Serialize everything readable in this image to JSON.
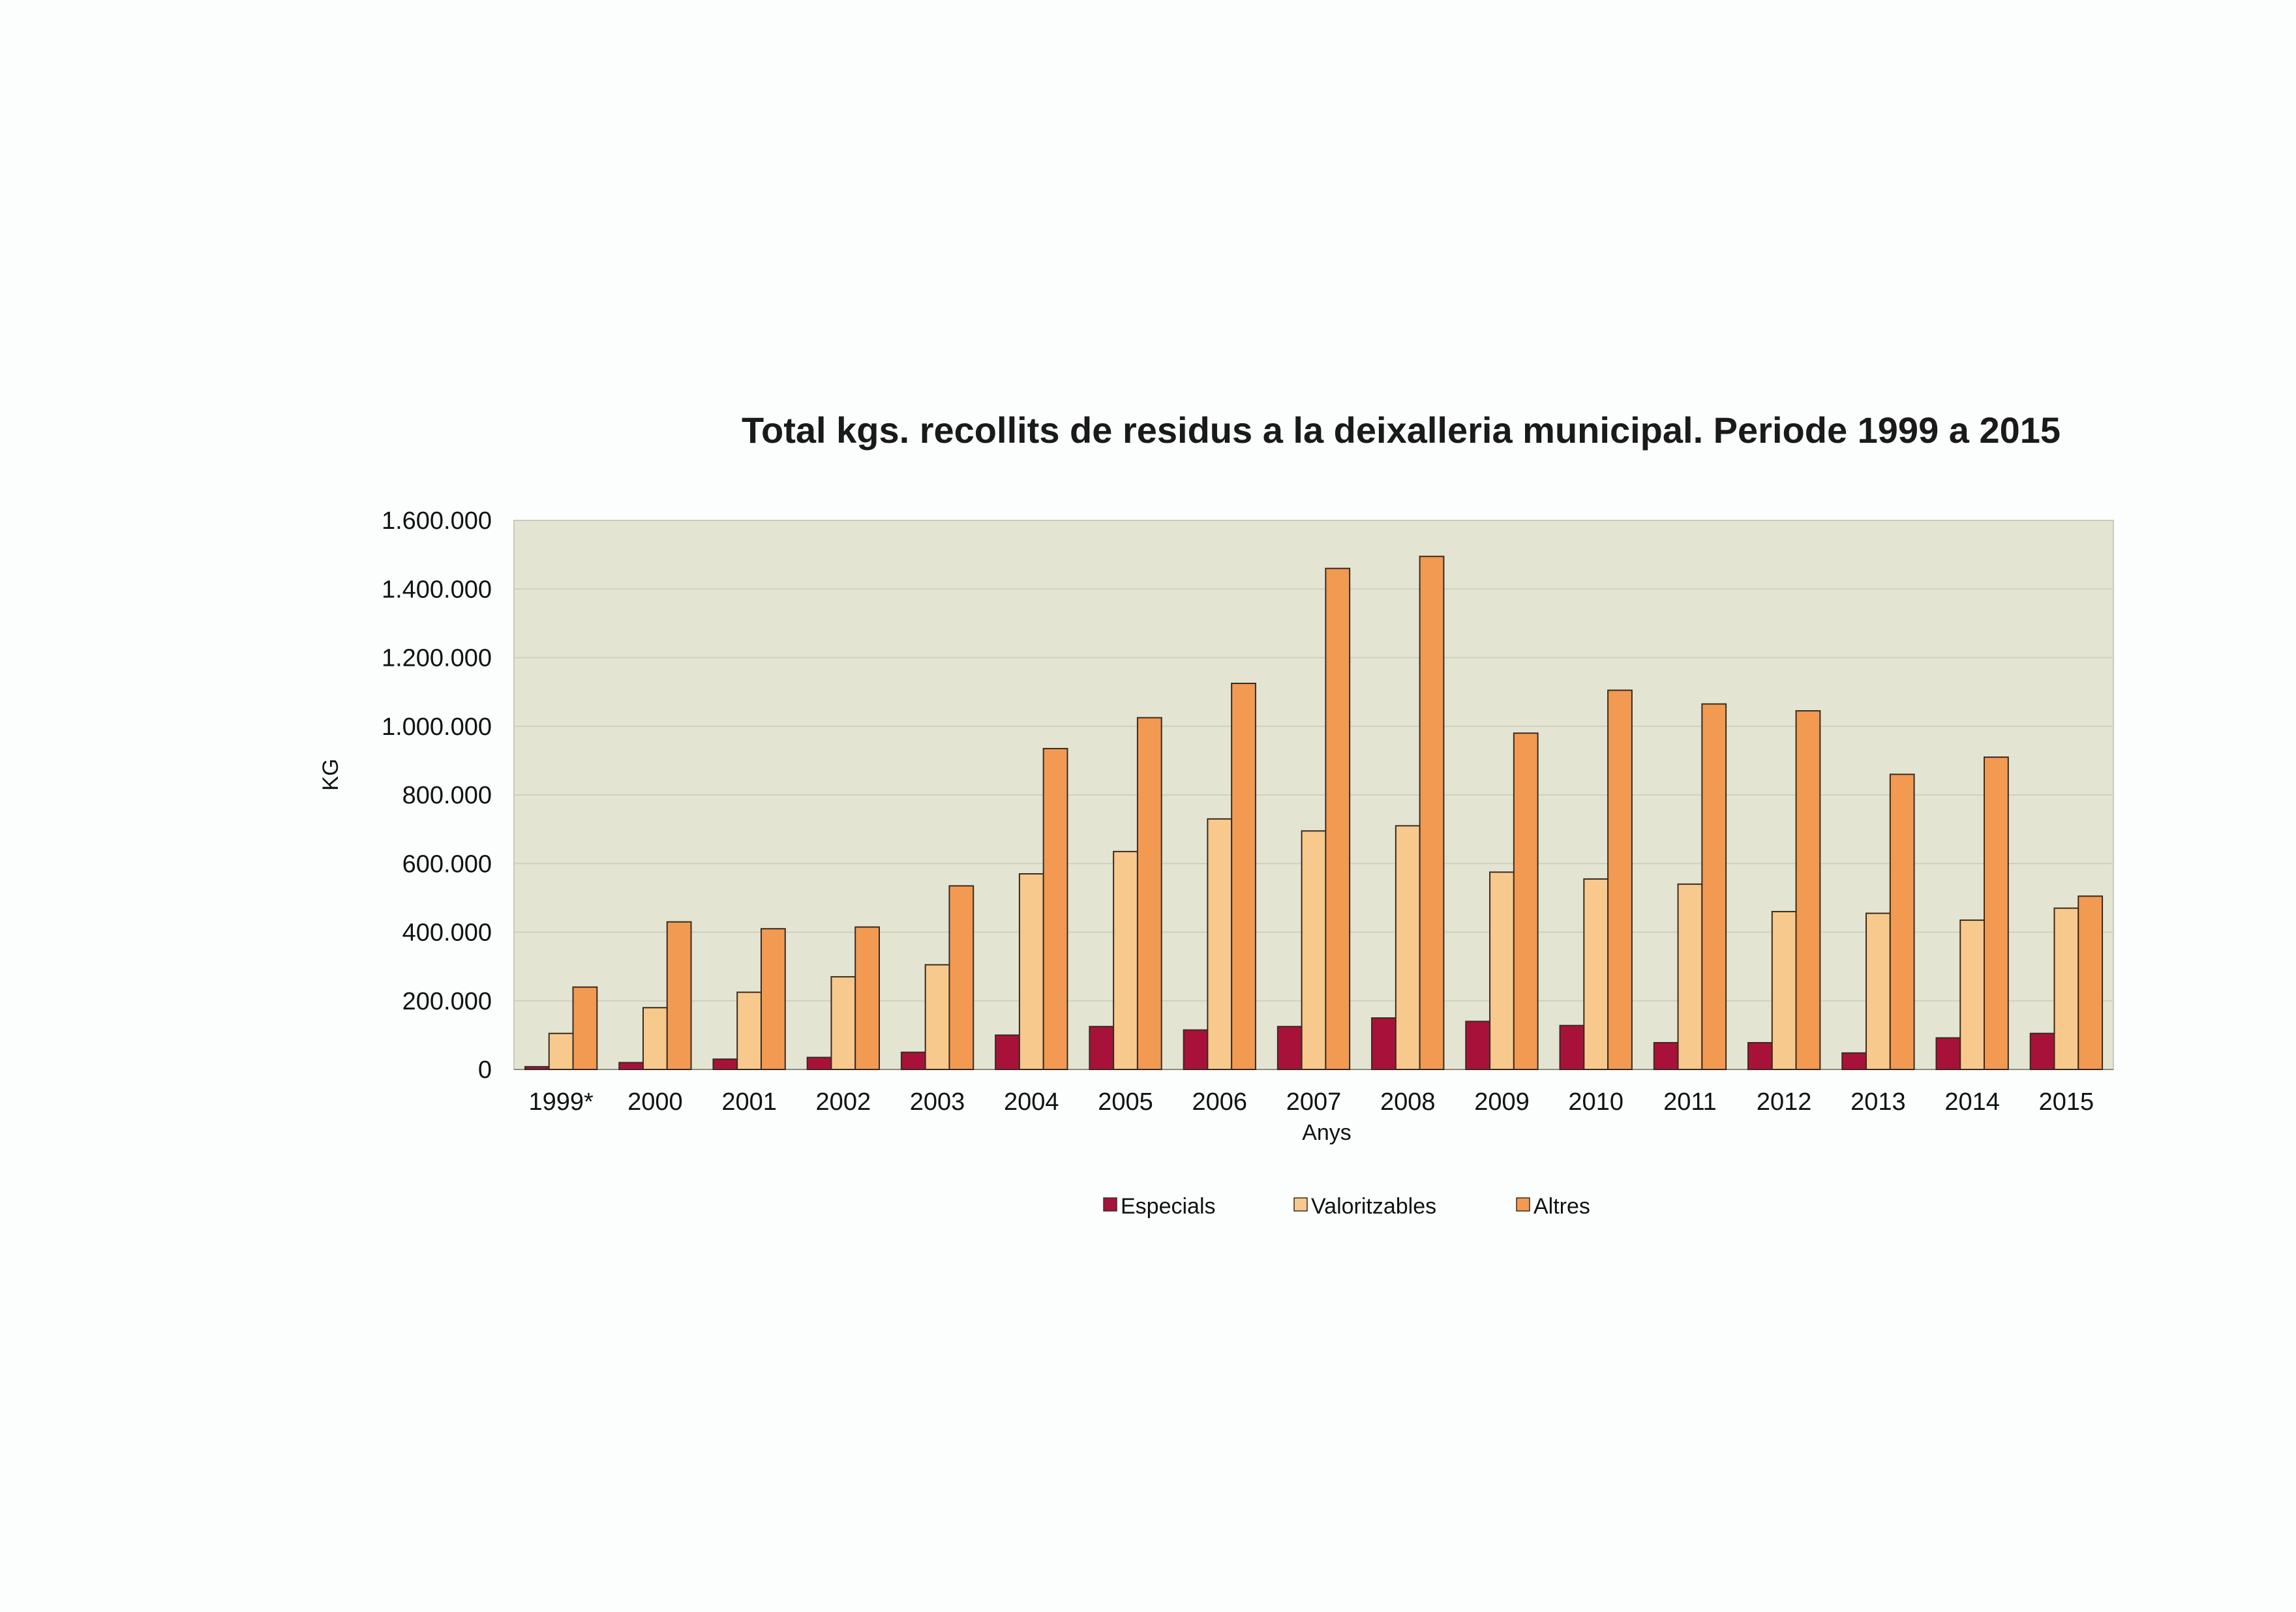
{
  "chart_data": {
    "type": "bar",
    "title": "Total kgs. recollits de residus a la deixalleria municipal. Periode 1999 a 2015",
    "xlabel": "Anys",
    "ylabel": "KG",
    "ylim": [
      0,
      1600000
    ],
    "yticks": [
      0,
      200000,
      400000,
      600000,
      800000,
      1000000,
      1200000,
      1400000,
      1600000
    ],
    "ytick_labels": [
      "0",
      "200.000",
      "400.000",
      "600.000",
      "800.000",
      "1.000.000",
      "1.200.000",
      "1.400.000",
      "1.600.000"
    ],
    "categories": [
      "1999*",
      "2000",
      "2001",
      "2002",
      "2003",
      "2004",
      "2005",
      "2006",
      "2007",
      "2008",
      "2009",
      "2010",
      "2011",
      "2012",
      "2013",
      "2014",
      "2015"
    ],
    "series": [
      {
        "name": "Especials",
        "color": "#a8123a",
        "values": [
          8000,
          20000,
          30000,
          35000,
          50000,
          100000,
          125000,
          115000,
          125000,
          150000,
          140000,
          128000,
          78000,
          78000,
          48000,
          92000,
          105000
        ]
      },
      {
        "name": "Valoritzables",
        "color": "#f8c98c",
        "values": [
          105000,
          180000,
          225000,
          270000,
          305000,
          570000,
          635000,
          730000,
          695000,
          710000,
          575000,
          555000,
          540000,
          460000,
          455000,
          435000,
          470000
        ]
      },
      {
        "name": "Altres",
        "color": "#f29a52",
        "values": [
          240000,
          430000,
          410000,
          415000,
          535000,
          935000,
          1025000,
          1125000,
          1460000,
          1495000,
          980000,
          1105000,
          1065000,
          1045000,
          860000,
          910000,
          505000
        ]
      }
    ],
    "grid": true,
    "legend_position": "bottom",
    "plot_background": "#e3e5d2"
  }
}
